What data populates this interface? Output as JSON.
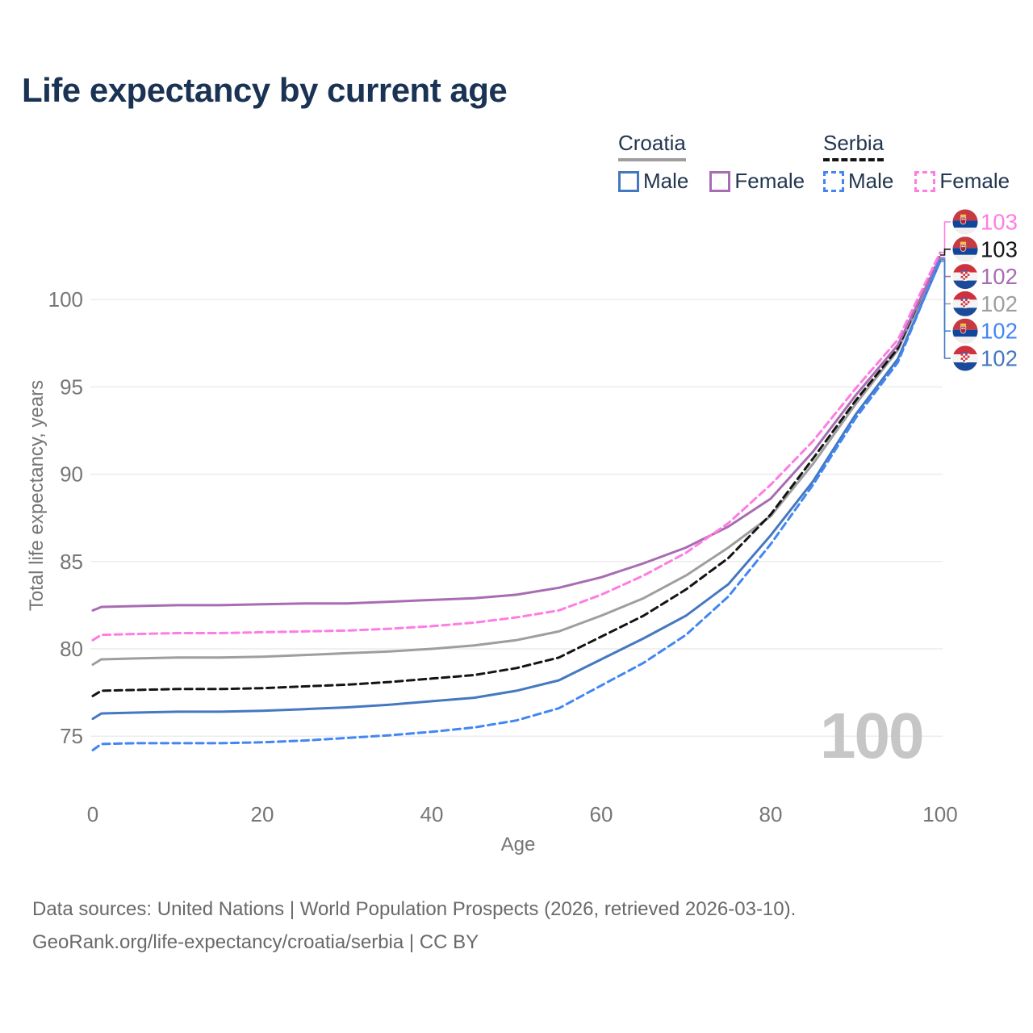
{
  "title": "Life expectancy by current age",
  "legend": {
    "groups": [
      {
        "country": "Croatia",
        "line_style": "solid",
        "underline_color": "#9e9e9e",
        "items": [
          {
            "label": "Male",
            "color": "#4478c0"
          },
          {
            "label": "Female",
            "color": "#a86cb2"
          }
        ]
      },
      {
        "country": "Serbia",
        "line_style": "dashed",
        "underline_color": "#141414",
        "items": [
          {
            "label": "Male",
            "color": "#4286f5"
          },
          {
            "label": "Female",
            "color": "#ff7ce2"
          }
        ]
      }
    ]
  },
  "age_indicator": "100",
  "footer": {
    "line1": "Data sources: United Nations | World Population Prospects (2026, retrieved 2026-03-10).",
    "line2": "GeoRank.org/life-expectancy/croatia/serbia | CC BY"
  },
  "chart_data": {
    "type": "line",
    "title": "Life expectancy by current age",
    "xlabel": "Age",
    "ylabel": "Total life expectancy, years",
    "xticks": [
      0,
      20,
      40,
      60,
      80,
      100
    ],
    "yticks": [
      75,
      80,
      85,
      90,
      95,
      100
    ],
    "xlim": [
      0,
      100
    ],
    "ylim": [
      73.5,
      103.5
    ],
    "grid": "horizontal",
    "legend_position": "top-right",
    "x": [
      0,
      1,
      5,
      10,
      15,
      20,
      25,
      30,
      35,
      40,
      45,
      50,
      55,
      60,
      65,
      70,
      75,
      80,
      85,
      90,
      95,
      100
    ],
    "series": [
      {
        "name": "Croatia",
        "country": "Croatia",
        "sex": "Both",
        "color": "#9e9e9e",
        "dashed": false,
        "flag": "croatia",
        "end_label": "102",
        "values": [
          79.1,
          79.4,
          79.45,
          79.5,
          79.5,
          79.55,
          79.65,
          79.75,
          79.85,
          80.0,
          80.2,
          80.5,
          81.0,
          81.9,
          82.9,
          84.2,
          85.8,
          87.6,
          90.6,
          94.0,
          97.1,
          102.35
        ]
      },
      {
        "name": "Serbia",
        "country": "Serbia",
        "sex": "Both",
        "color": "#141414",
        "dashed": true,
        "flag": "serbia",
        "end_label": "103",
        "values": [
          77.3,
          77.6,
          77.65,
          77.7,
          77.7,
          77.75,
          77.85,
          77.95,
          78.1,
          78.3,
          78.5,
          78.9,
          79.5,
          80.7,
          81.9,
          83.4,
          85.2,
          87.7,
          90.9,
          94.2,
          97.2,
          102.55
        ]
      },
      {
        "name": "Croatia Female",
        "country": "Croatia",
        "sex": "Female",
        "color": "#a86cb2",
        "dashed": false,
        "flag": "croatia",
        "end_label": "102",
        "values": [
          82.2,
          82.4,
          82.45,
          82.5,
          82.5,
          82.55,
          82.6,
          82.6,
          82.7,
          82.8,
          82.9,
          83.1,
          83.5,
          84.1,
          84.9,
          85.8,
          87.0,
          88.6,
          91.3,
          94.5,
          97.4,
          102.4
        ]
      },
      {
        "name": "Serbia Female",
        "country": "Serbia",
        "sex": "Female",
        "color": "#ff7ce2",
        "dashed": true,
        "flag": "serbia",
        "end_label": "103",
        "values": [
          80.5,
          80.8,
          80.85,
          80.9,
          80.9,
          80.95,
          81.0,
          81.05,
          81.15,
          81.3,
          81.5,
          81.8,
          82.2,
          83.1,
          84.2,
          85.5,
          87.2,
          89.4,
          91.9,
          94.9,
          97.7,
          102.7
        ]
      },
      {
        "name": "Croatia Male",
        "country": "Croatia",
        "sex": "Male",
        "color": "#4478c0",
        "dashed": false,
        "flag": "croatia",
        "end_label": "102",
        "values": [
          76.0,
          76.3,
          76.35,
          76.4,
          76.4,
          76.45,
          76.55,
          76.65,
          76.8,
          77.0,
          77.2,
          77.6,
          78.2,
          79.4,
          80.6,
          81.9,
          83.7,
          86.5,
          89.6,
          93.4,
          96.6,
          102.2
        ]
      },
      {
        "name": "Serbia Male",
        "country": "Serbia",
        "sex": "Male",
        "color": "#4286f5",
        "dashed": true,
        "flag": "serbia",
        "end_label": "102",
        "values": [
          74.2,
          74.55,
          74.6,
          74.6,
          74.6,
          74.65,
          74.75,
          74.9,
          75.05,
          75.25,
          75.5,
          75.9,
          76.6,
          77.9,
          79.2,
          80.8,
          83.0,
          86.0,
          89.4,
          93.2,
          96.4,
          102.3
        ]
      }
    ]
  }
}
